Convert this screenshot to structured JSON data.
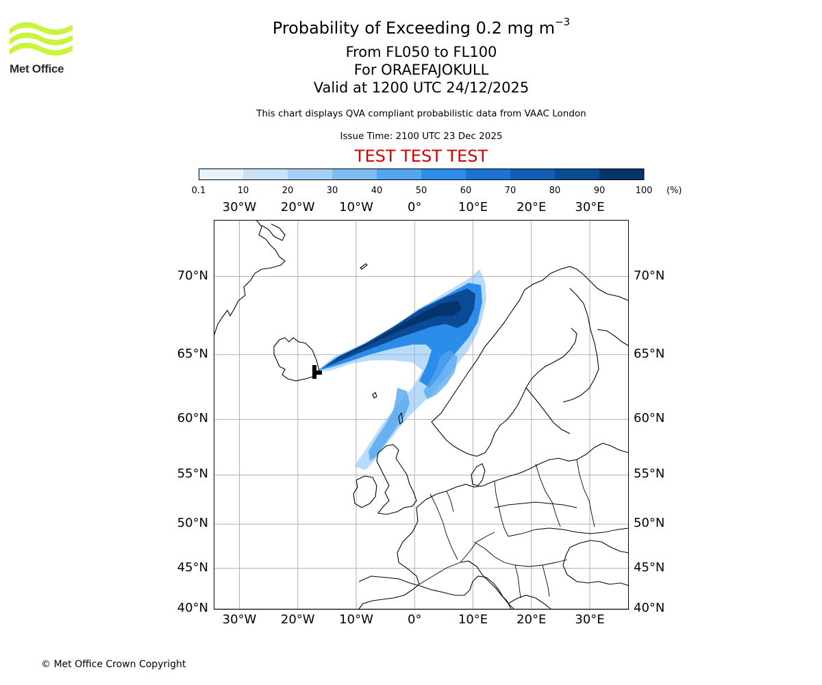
{
  "title": {
    "main_prefix": "Probability of Exceeding 0.2 mg m",
    "main_superscript": "−3",
    "line2": "From FL050 to FL100",
    "line3": "For ORAEFAJOKULL",
    "line4": "Valid at 1200 UTC 24/12/2025"
  },
  "note": "This chart displays QVA compliant probabilistic data from VAAC London",
  "issue_time": "Issue Time: 2100 UTC 23 Dec 2025",
  "test_banner": "TEST TEST TEST",
  "logo": {
    "text": "Met Office",
    "color": "#c8f53c"
  },
  "colorbar": {
    "ticks": [
      "0.1",
      "10",
      "20",
      "30",
      "40",
      "50",
      "60",
      "70",
      "80",
      "90",
      "100"
    ],
    "unit": "(%)",
    "colors": [
      "#e6f2fd",
      "#c7e2f9",
      "#a6d0f6",
      "#7ebdf4",
      "#52a6f0",
      "#2b8cea",
      "#1c74d2",
      "#125eb5",
      "#0b4a94",
      "#05336b"
    ]
  },
  "map": {
    "lon_labels": [
      "30°W",
      "20°W",
      "10°W",
      "0°",
      "10°E",
      "20°E",
      "30°E"
    ],
    "lon_values": [
      -30,
      -20,
      -10,
      0,
      10,
      20,
      30
    ],
    "lat_labels": [
      "70°N",
      "65°N",
      "60°N",
      "55°N",
      "50°N",
      "45°N",
      "40°N"
    ],
    "lat_values": [
      70,
      65,
      60,
      55,
      50,
      45,
      40
    ],
    "extent": {
      "lon": [
        -34.4,
        36.8
      ],
      "lat": [
        39.8,
        73.0
      ]
    },
    "source_volcano": {
      "name": "ORAEFAJOKULL",
      "lon": -16.6,
      "lat": 64.0
    }
  },
  "copyright": "© Met Office Crown Copyright"
}
